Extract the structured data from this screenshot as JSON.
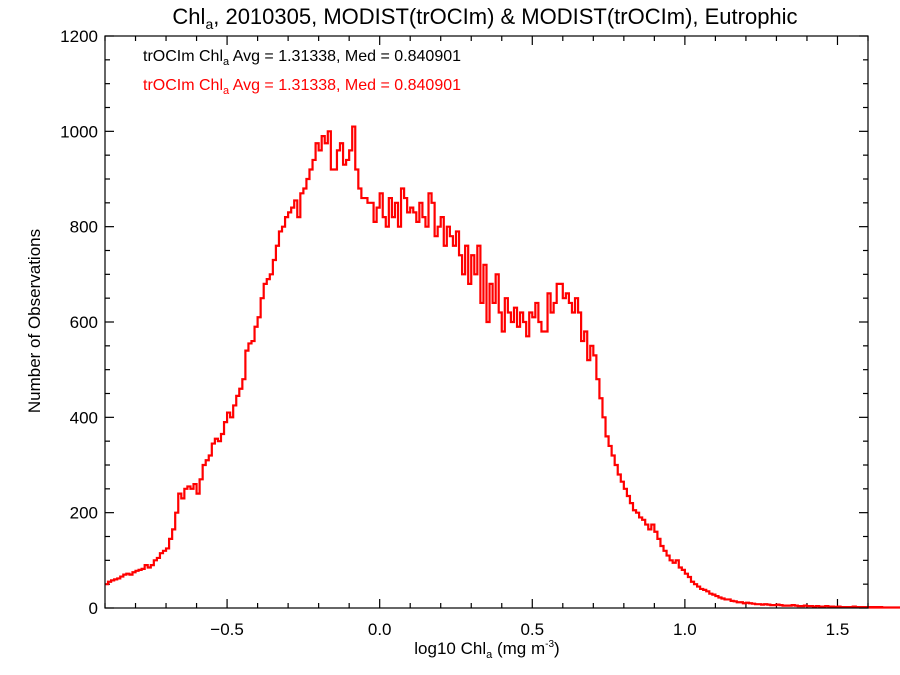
{
  "chart_data": {
    "type": "histogram-step",
    "title": {
      "pre": "Chl",
      "sub": "a",
      "post": ", 2010305, MODIST(trOCIm) & MODIST(trOCIm), Eutrophic"
    },
    "xlabel": {
      "pre": "log10 Chl",
      "sub": "a",
      "mid": " (mg m",
      "sup": "-3",
      "post": ")"
    },
    "ylabel": "Number of Observations",
    "xlim": [
      -0.9,
      1.6
    ],
    "ylim": [
      0,
      1200
    ],
    "xticks": [
      -0.5,
      0.0,
      0.5,
      1.0,
      1.5
    ],
    "xtick_labels": [
      "−0.5",
      "0.0",
      "0.5",
      "1.0",
      "1.5"
    ],
    "yticks": [
      0,
      200,
      400,
      600,
      800,
      1000,
      1200
    ],
    "ytick_labels": [
      "0",
      "200",
      "400",
      "600",
      "800",
      "1000",
      "1200"
    ],
    "legend_placement": "top-left",
    "annotations": [
      {
        "pre": "trOCIm Chl",
        "sub": "a",
        "post": " Avg = 1.31338, Med = 0.840901",
        "color": "#000000"
      },
      {
        "pre": "trOCIm Chl",
        "sub": "a",
        "post": " Avg = 1.31338, Med = 0.840901",
        "color": "#ff0000"
      }
    ],
    "series": [
      {
        "color": "#ff0000",
        "bin_width": 0.01,
        "x_start": -0.9,
        "values": [
          50,
          55,
          58,
          60,
          62,
          66,
          70,
          72,
          70,
          75,
          78,
          80,
          82,
          90,
          85,
          90,
          100,
          105,
          115,
          120,
          125,
          145,
          165,
          200,
          240,
          230,
          250,
          255,
          250,
          260,
          240,
          270,
          300,
          310,
          320,
          345,
          355,
          350,
          365,
          390,
          410,
          400,
          425,
          445,
          460,
          480,
          540,
          555,
          560,
          590,
          610,
          650,
          680,
          690,
          700,
          730,
          760,
          790,
          800,
          820,
          830,
          840,
          855,
          820,
          870,
          880,
          900,
          920,
          940,
          975,
          960,
          990,
          975,
          1000,
          920,
          920,
          960,
          975,
          930,
          940,
          960,
          1010,
          920,
          880,
          860,
          860,
          850,
          850,
          810,
          840,
          870,
          820,
          800,
          860,
          820,
          850,
          800,
          880,
          860,
          830,
          840,
          830,
          810,
          850,
          820,
          800,
          870,
          850,
          780,
          800,
          820,
          760,
          800,
          780,
          760,
          790,
          740,
          700,
          760,
          680,
          740,
          700,
          760,
          640,
          720,
          600,
          680,
          640,
          700,
          620,
          580,
          650,
          620,
          600,
          630,
          590,
          620,
          600,
          570,
          620,
          610,
          640,
          600,
          580,
          580,
          660,
          620,
          640,
          680,
          680,
          650,
          660,
          640,
          620,
          650,
          620,
          560,
          580,
          520,
          550,
          530,
          480,
          440,
          400,
          360,
          340,
          320,
          300,
          280,
          265,
          250,
          235,
          220,
          205,
          200,
          190,
          185,
          175,
          165,
          175,
          160,
          145,
          130,
          120,
          110,
          100,
          95,
          100,
          85,
          80,
          72,
          65,
          55,
          50,
          45,
          40,
          38,
          35,
          30,
          28,
          25,
          22,
          20,
          18,
          18,
          15,
          14,
          12,
          12,
          10,
          11,
          10,
          9,
          8,
          8,
          7,
          8,
          7,
          6,
          6,
          7,
          6,
          5,
          5,
          5,
          6,
          5,
          4,
          4,
          5,
          4,
          4,
          3,
          4,
          3,
          3,
          4,
          3,
          3,
          2,
          3,
          2,
          2,
          2,
          2,
          3,
          2,
          2,
          2,
          2,
          2,
          1,
          2,
          1,
          1,
          2,
          1,
          1,
          1,
          1,
          1,
          1,
          1,
          1,
          1,
          1,
          1,
          1,
          1,
          1,
          1,
          1,
          1,
          1,
          1
        ]
      }
    ]
  }
}
